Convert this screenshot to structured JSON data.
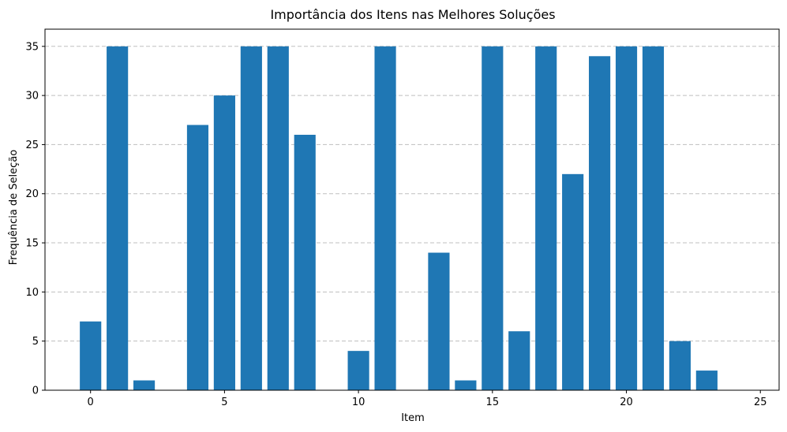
{
  "chart_data": {
    "type": "bar",
    "title": "Importância dos Itens nas Melhores Soluções",
    "xlabel": "Item",
    "ylabel": "Frequência de Seleção",
    "x": [
      0,
      1,
      2,
      3,
      4,
      5,
      6,
      7,
      8,
      9,
      10,
      11,
      12,
      13,
      14,
      15,
      16,
      17,
      18,
      19,
      20,
      21,
      22,
      23,
      24
    ],
    "values": [
      7,
      35,
      1,
      0,
      27,
      30,
      35,
      35,
      26,
      0,
      4,
      35,
      0,
      14,
      1,
      35,
      6,
      35,
      22,
      34,
      35,
      35,
      5,
      2,
      0
    ],
    "xlim": [
      -1.7,
      25.7
    ],
    "ylim": [
      0,
      36.75
    ],
    "xticks": [
      0,
      5,
      10,
      15,
      20,
      25
    ],
    "yticks": [
      0,
      5,
      10,
      15,
      20,
      25,
      30,
      35
    ],
    "grid": "y-dashed",
    "bar_color": "#1f77b4"
  }
}
